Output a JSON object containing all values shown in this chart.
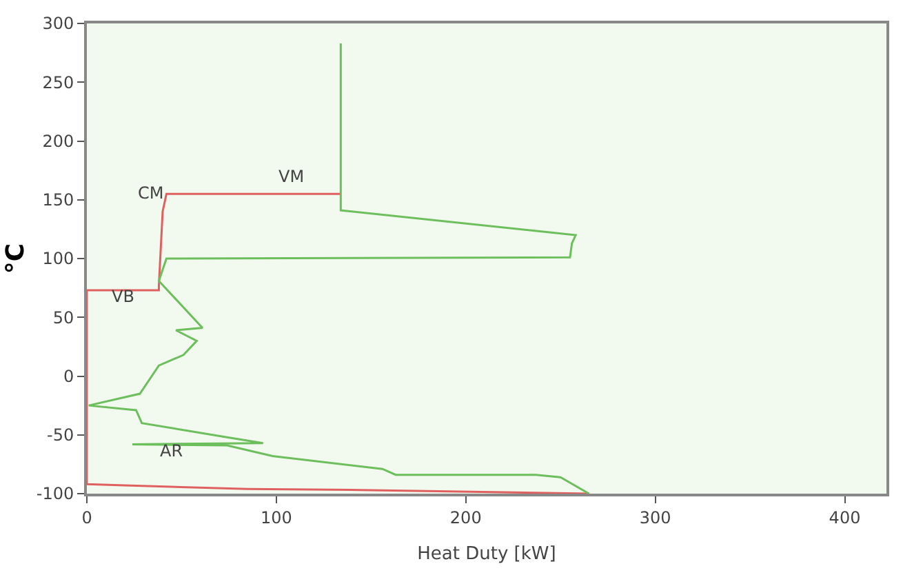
{
  "chart_data": {
    "type": "line",
    "xlabel": "Heat Duty [kW]",
    "ylabel": "°C",
    "xlim": [
      0,
      422
    ],
    "ylim": [
      -100,
      300
    ],
    "xticks": [
      0,
      100,
      200,
      300,
      400
    ],
    "yticks": [
      -100,
      -50,
      0,
      50,
      100,
      150,
      200,
      250,
      300
    ],
    "grid": false,
    "marker": "none",
    "line_style": "solid",
    "series": [
      {
        "color": "#e06060",
        "x": [
          265,
          150,
          85,
          20,
          0,
          0,
          38,
          38,
          40,
          42,
          134
        ],
        "values": [
          -100,
          -97,
          -96,
          -93,
          -92,
          73,
          73,
          77,
          140,
          155,
          155
        ]
      },
      {
        "color": "#6cbf5c",
        "x": [
          134,
          134,
          258,
          256,
          255,
          42,
          38,
          61,
          47,
          58,
          51,
          38,
          28,
          1,
          26,
          29,
          74,
          93,
          24,
          74,
          98,
          156,
          163,
          237,
          250,
          265
        ],
        "values": [
          283,
          141,
          120,
          113,
          101,
          100,
          81,
          41,
          39,
          30,
          18,
          9,
          -15,
          -25,
          -29,
          -40,
          -52,
          -57,
          -58,
          -59,
          -68,
          -79,
          -84,
          -84,
          -86,
          -100
        ]
      }
    ],
    "annotations": [
      "VM",
      "CM",
      "VB",
      "AR"
    ]
  }
}
